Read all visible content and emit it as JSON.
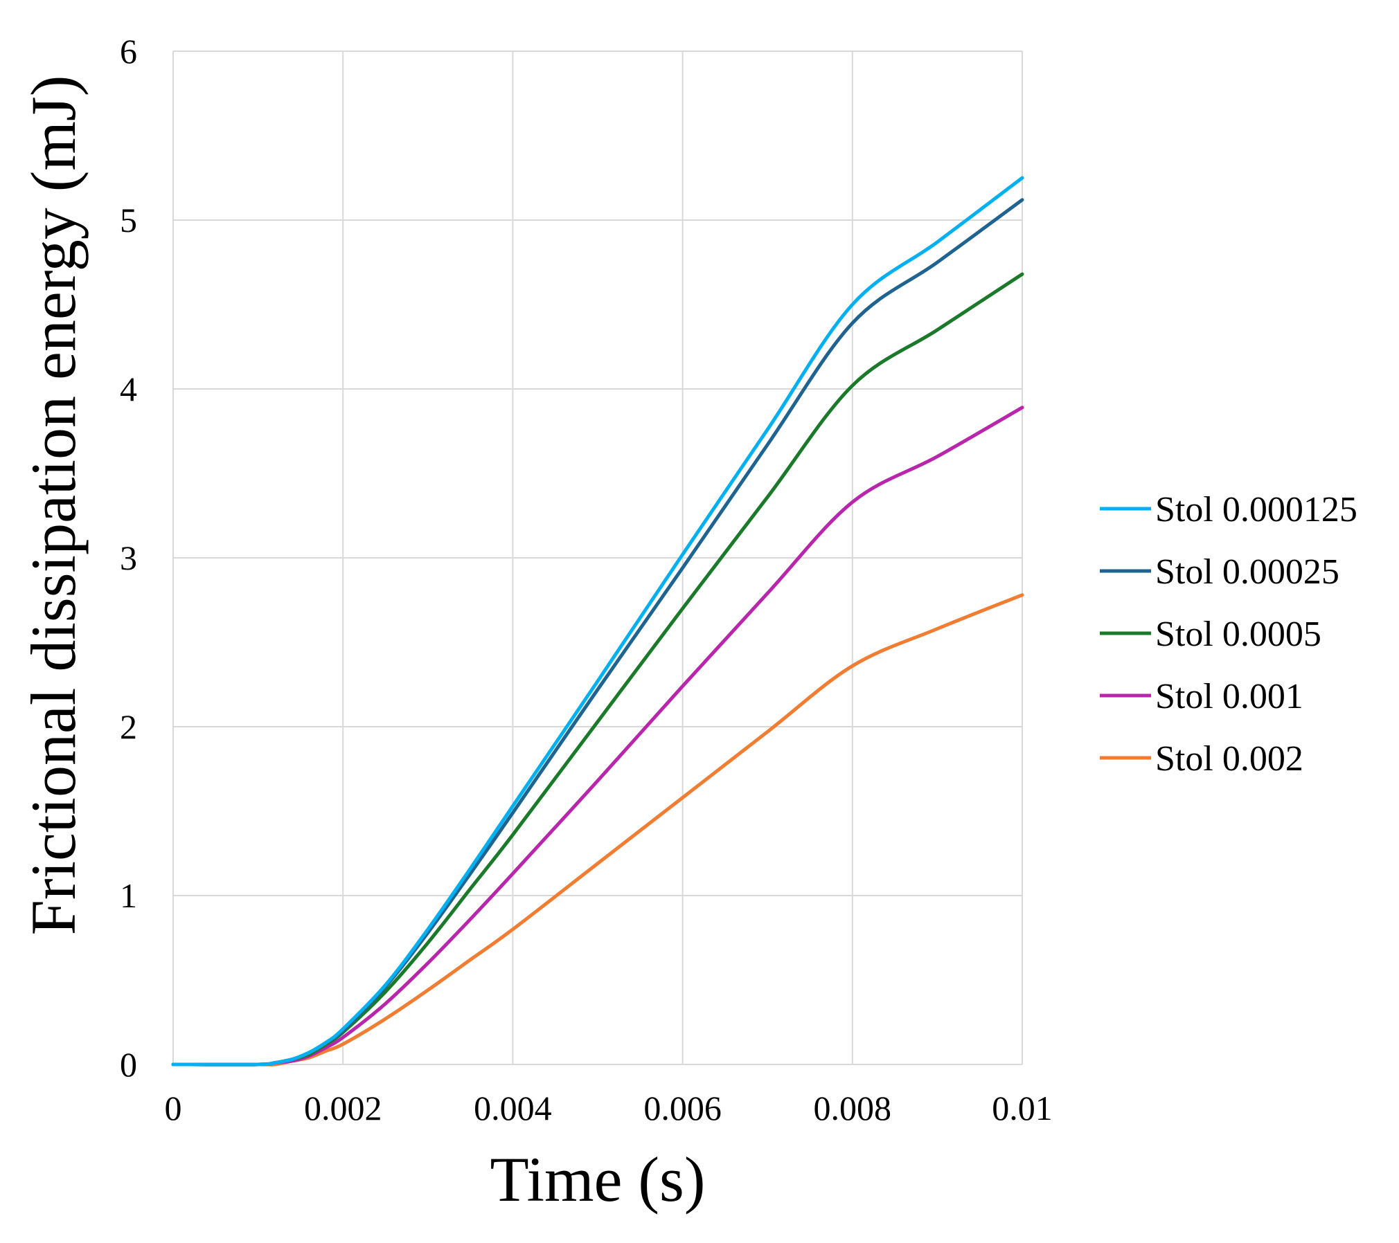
{
  "chart_data": {
    "type": "line",
    "title": "",
    "xlabel": "Time (s)",
    "ylabel": "Frictional dissipation energy (mJ)",
    "xlim": [
      0,
      0.01
    ],
    "ylim": [
      0,
      6
    ],
    "grid": true,
    "legend_position": "right",
    "x_ticks": [
      {
        "value": 0,
        "label": "0"
      },
      {
        "value": 0.002,
        "label": "0.002"
      },
      {
        "value": 0.004,
        "label": "0.004"
      },
      {
        "value": 0.006,
        "label": "0.006"
      },
      {
        "value": 0.008,
        "label": "0.008"
      },
      {
        "value": 0.01,
        "label": "0.01"
      }
    ],
    "y_ticks": [
      {
        "value": 0,
        "label": "0"
      },
      {
        "value": 1,
        "label": "1"
      },
      {
        "value": 2,
        "label": "2"
      },
      {
        "value": 3,
        "label": "3"
      },
      {
        "value": 4,
        "label": "4"
      },
      {
        "value": 5,
        "label": "5"
      },
      {
        "value": 6,
        "label": "6"
      }
    ],
    "x": [
      0,
      0.001,
      0.0012,
      0.0014,
      0.0016,
      0.0018,
      0.002,
      0.0025,
      0.003,
      0.0035,
      0.004,
      0.005,
      0.006,
      0.007,
      0.008,
      0.009,
      0.01
    ],
    "series": [
      {
        "name": "Stol 0.000125",
        "color": "#00b0f0",
        "values": [
          0,
          0,
          0.01,
          0.03,
          0.07,
          0.13,
          0.21,
          0.47,
          0.8,
          1.16,
          1.53,
          2.27,
          3.02,
          3.76,
          4.5,
          4.87,
          5.25
        ]
      },
      {
        "name": "Stol 0.00025",
        "color": "#1f6391",
        "values": [
          0,
          0,
          0.01,
          0.03,
          0.07,
          0.13,
          0.2,
          0.46,
          0.78,
          1.13,
          1.49,
          2.22,
          2.94,
          3.67,
          4.39,
          4.75,
          5.12
        ]
      },
      {
        "name": "Stol 0.0005",
        "color": "#1a7a2a",
        "values": [
          0,
          0,
          0.01,
          0.03,
          0.06,
          0.12,
          0.19,
          0.43,
          0.72,
          1.04,
          1.36,
          2.03,
          2.7,
          3.36,
          4.02,
          4.35,
          4.68
        ]
      },
      {
        "name": "Stol 0.001",
        "color": "#b826ab",
        "values": [
          0,
          0,
          0.01,
          0.02,
          0.05,
          0.1,
          0.16,
          0.36,
          0.6,
          0.86,
          1.13,
          1.68,
          2.24,
          2.79,
          3.33,
          3.6,
          3.89
        ]
      },
      {
        "name": "Stol 0.002",
        "color": "#f07d32",
        "values": [
          0,
          0,
          0,
          0.02,
          0.04,
          0.08,
          0.12,
          0.27,
          0.44,
          0.62,
          0.8,
          1.19,
          1.58,
          1.97,
          2.36,
          2.58,
          2.78
        ]
      }
    ]
  }
}
